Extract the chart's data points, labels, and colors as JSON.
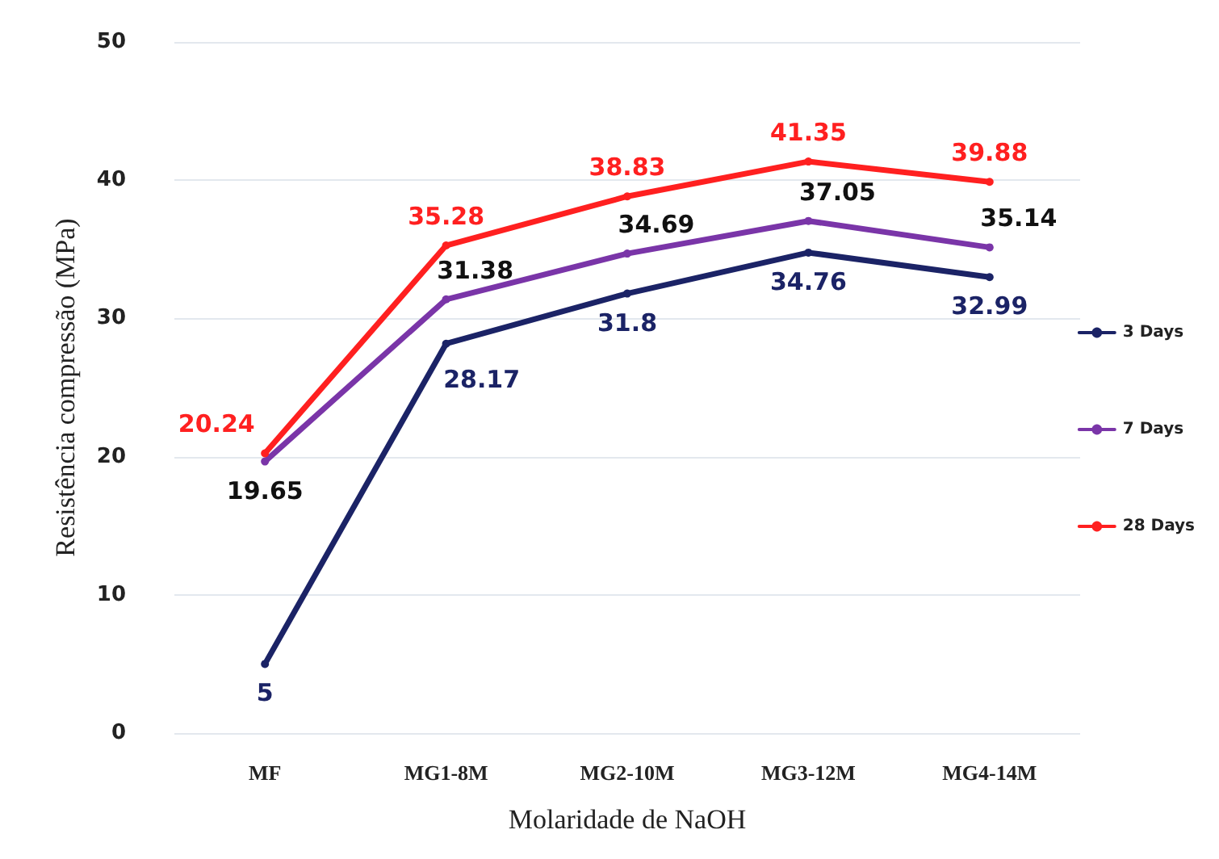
{
  "chart_data": {
    "type": "line",
    "xlabel": "Molaridade de NaOH",
    "ylabel": "Resistência compressão (MPa)",
    "categories": [
      "MF",
      "MG1-8M",
      "MG2-10M",
      "MG3-12M",
      "MG4-14M"
    ],
    "series": [
      {
        "name": "3 Days",
        "color": "#1b2366",
        "values": [
          5,
          28.17,
          31.8,
          34.76,
          32.99
        ]
      },
      {
        "name": "7 Days",
        "color": "#7a35a8",
        "values": [
          19.65,
          31.38,
          34.69,
          37.05,
          35.14
        ]
      },
      {
        "name": "28 Days",
        "color": "#ff2020",
        "values": [
          20.24,
          35.28,
          38.83,
          41.35,
          39.88
        ]
      }
    ],
    "ylim": [
      0,
      50
    ],
    "yticks": [
      0,
      10,
      20,
      30,
      40,
      50
    ],
    "grid": "y",
    "legend": "right",
    "marker": "circle",
    "data_labels": true
  }
}
